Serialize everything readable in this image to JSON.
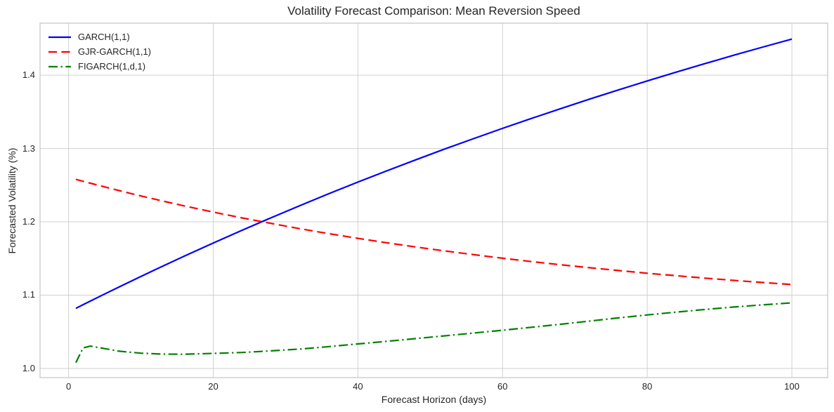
{
  "chart_data": {
    "type": "line",
    "title": "Volatility Forecast Comparison: Mean Reversion Speed",
    "xlabel": "Forecast Horizon (days)",
    "ylabel": "Forecasted Volatility (%)",
    "xlim": [
      -3.95,
      104.95
    ],
    "ylim": [
      0.9875,
      1.471
    ],
    "grid": true,
    "legend_position": "upper-left",
    "x_ticks": [
      {
        "v": 0,
        "label": "0"
      },
      {
        "v": 20,
        "label": "20"
      },
      {
        "v": 40,
        "label": "40"
      },
      {
        "v": 60,
        "label": "60"
      },
      {
        "v": 80,
        "label": "80"
      },
      {
        "v": 100,
        "label": "100"
      }
    ],
    "y_ticks": [
      {
        "v": 1.0,
        "label": "1.0"
      },
      {
        "v": 1.1,
        "label": "1.1"
      },
      {
        "v": 1.2,
        "label": "1.2"
      },
      {
        "v": 1.3,
        "label": "1.3"
      },
      {
        "v": 1.4,
        "label": "1.4"
      }
    ],
    "x": [
      1,
      2,
      3,
      5,
      7,
      10,
      13,
      16,
      20,
      24,
      28,
      32,
      36,
      40,
      44,
      48,
      52,
      56,
      60,
      64,
      68,
      72,
      76,
      80,
      84,
      88,
      92,
      96,
      100
    ],
    "series": [
      {
        "name": "GARCH(1,1)",
        "color": "#0000ff",
        "linestyle": "solid",
        "values": [
          1.082,
          1.087,
          1.0919,
          1.1016,
          1.1113,
          1.1255,
          1.1395,
          1.1532,
          1.1711,
          1.1886,
          1.2056,
          1.2222,
          1.2384,
          1.2542,
          1.2696,
          1.2846,
          1.2993,
          1.3135,
          1.3275,
          1.3411,
          1.3543,
          1.3673,
          1.3799,
          1.3922,
          1.4042,
          1.4159,
          1.4273,
          1.4384,
          1.4493
        ]
      },
      {
        "name": "GJR-GARCH(1,1)",
        "color": "#ff0000",
        "linestyle": "dashed",
        "values": [
          1.258,
          1.2553,
          1.2527,
          1.2476,
          1.2426,
          1.2353,
          1.2284,
          1.2217,
          1.2133,
          1.2053,
          1.1978,
          1.1906,
          1.1839,
          1.1775,
          1.1714,
          1.1657,
          1.1603,
          1.1552,
          1.1504,
          1.1458,
          1.1415,
          1.1374,
          1.1336,
          1.1299,
          1.1265,
          1.1232,
          1.1201,
          1.1172,
          1.1145
        ]
      },
      {
        "name": "FIGARCH(1,d,1)",
        "color": "#008000",
        "linestyle": "dashdot",
        "values": [
          1.008,
          1.028,
          1.0305,
          1.027,
          1.0235,
          1.0208,
          1.0196,
          1.0194,
          1.0205,
          1.0218,
          1.024,
          1.0265,
          1.0298,
          1.0335,
          1.037,
          1.0407,
          1.0445,
          1.0483,
          1.0521,
          1.0561,
          1.0603,
          1.0646,
          1.069,
          1.073,
          1.0768,
          1.0805,
          1.0838,
          1.0868,
          1.0895
        ]
      }
    ],
    "style": {
      "grid_color": "#d0d0d0",
      "spine_color": "#c4c4c4",
      "text_color": "#262626",
      "background": "#ffffff",
      "line_width": 2.2
    }
  }
}
